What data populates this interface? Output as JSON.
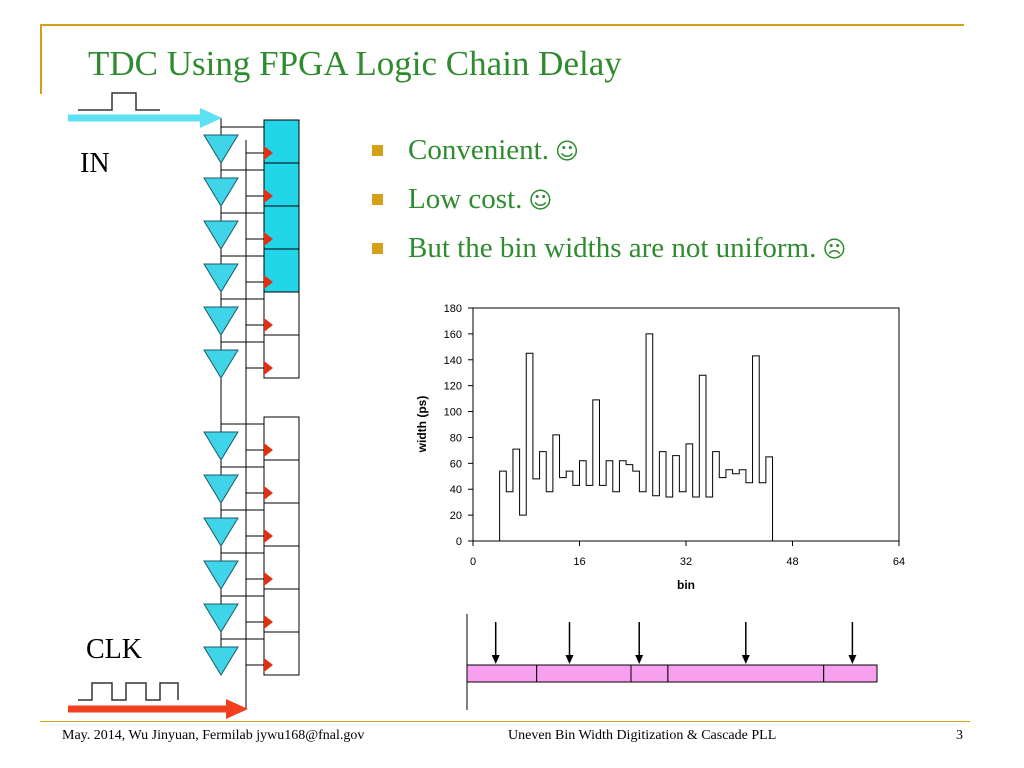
{
  "title": "TDC Using FPGA Logic Chain Delay",
  "bullets": [
    {
      "text": "Convenient.",
      "icon": "smiley-icon"
    },
    {
      "text": "Low cost.",
      "icon": "smiley-icon"
    },
    {
      "text": "But the bin widths are not uniform.",
      "icon": "frowny-icon"
    }
  ],
  "diagram": {
    "in_label": "IN",
    "clk_label": "CLK",
    "colors": {
      "in_arrow": "#5ce1f2",
      "clk_arrow": "#f04020",
      "buffer": "#3fd4e8",
      "register_active": "#22d5e8",
      "flip_flop_marker": "#e03010"
    }
  },
  "chart_data": {
    "type": "bar",
    "style": "step-histogram",
    "xlabel": "bin",
    "ylabel": "width (ps)",
    "xlim": [
      0,
      64
    ],
    "ylim": [
      0,
      180
    ],
    "xticks": [
      0,
      16,
      32,
      48,
      64
    ],
    "yticks": [
      0,
      20,
      40,
      60,
      80,
      100,
      120,
      140,
      160,
      180
    ],
    "grid": false,
    "x": [
      4,
      5,
      6,
      7,
      8,
      9,
      10,
      11,
      12,
      13,
      14,
      15,
      16,
      17,
      18,
      19,
      20,
      21,
      22,
      23,
      24,
      25,
      26,
      27,
      28,
      29,
      30,
      31,
      32,
      33,
      34,
      35,
      36,
      37,
      38,
      39,
      40,
      41,
      42,
      43,
      44
    ],
    "values": [
      54,
      38,
      71,
      20,
      145,
      48,
      69,
      38,
      82,
      49,
      54,
      43,
      62,
      43,
      109,
      43,
      62,
      38,
      62,
      59,
      54,
      38,
      160,
      35,
      69,
      34,
      66,
      38,
      75,
      34,
      128,
      34,
      69,
      49,
      55,
      52,
      55,
      45,
      143,
      45,
      65
    ]
  },
  "bin_strip": {
    "colors": {
      "fill": "#f8a0f0"
    },
    "boundaries": [
      0,
      0.17,
      0.4,
      0.49,
      0.87,
      1.0
    ],
    "arrows": [
      0.07,
      0.25,
      0.42,
      0.68,
      0.94
    ]
  },
  "footer": {
    "left": "May. 2014, Wu Jinyuan, Fermilab jywu168@fnal.gov",
    "center": "Uneven Bin Width Digitization & Cascade PLL",
    "page": "3"
  }
}
